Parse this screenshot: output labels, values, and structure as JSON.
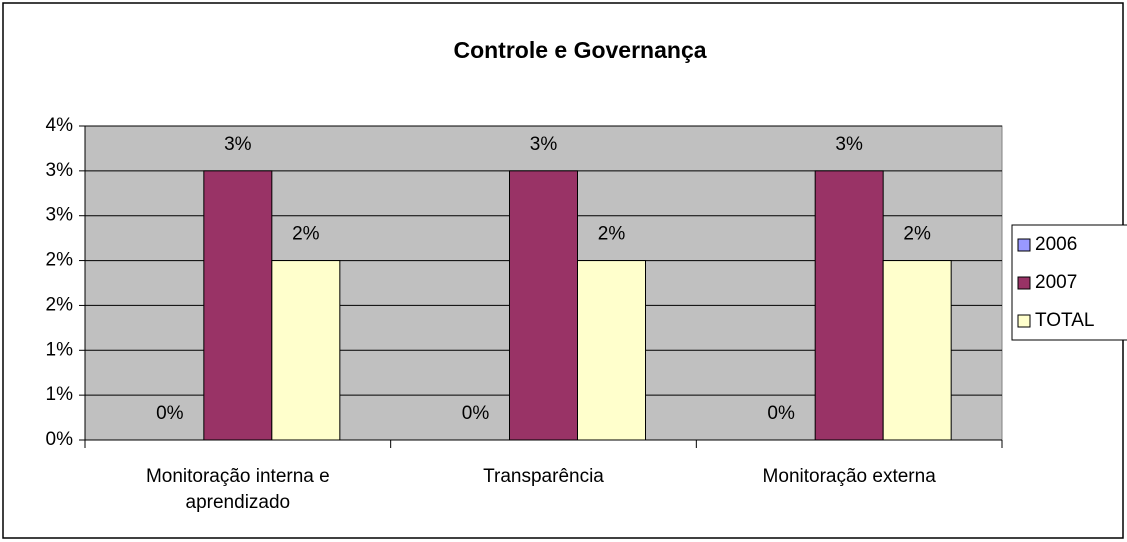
{
  "chart_data": {
    "type": "bar",
    "title": "Controle e Governança",
    "categories": [
      "Monitoração interna e aprendizado",
      "Transparência",
      "Monitoração externa"
    ],
    "series": [
      {
        "name": "2006",
        "color": "#9999ff",
        "values": [
          0,
          0,
          0
        ],
        "value_labels": [
          "0%",
          "0%",
          "0%"
        ]
      },
      {
        "name": "2007",
        "color": "#993366",
        "values": [
          3,
          3,
          3
        ],
        "value_labels": [
          "3%",
          "3%",
          "3%"
        ]
      },
      {
        "name": "TOTAL",
        "color": "#ffffcc",
        "values": [
          2,
          2,
          2
        ],
        "value_labels": [
          "2%",
          "2%",
          "2%"
        ]
      }
    ],
    "ylim": [
      0,
      3.5
    ],
    "yticks": [
      {
        "value": 0,
        "label": "0%"
      },
      {
        "value": 0.5,
        "label": "1%"
      },
      {
        "value": 1,
        "label": "1%"
      },
      {
        "value": 1.5,
        "label": "2%"
      },
      {
        "value": 2,
        "label": "2%"
      },
      {
        "value": 2.5,
        "label": "3%"
      },
      {
        "value": 3,
        "label": "3%"
      },
      {
        "value": 3.5,
        "label": "4%"
      }
    ],
    "grid": true,
    "legend": "right"
  }
}
